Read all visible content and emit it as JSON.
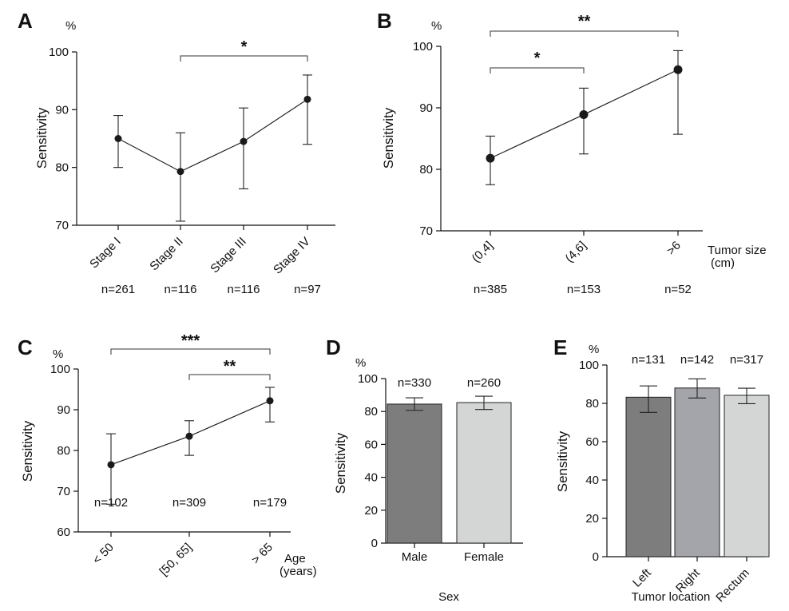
{
  "chart_data": [
    {
      "panel": "A",
      "type": "line",
      "unit": "%",
      "ylabel": "Sensitivity",
      "xlabel": "",
      "ylim": [
        70,
        100
      ],
      "yticks": [
        70,
        80,
        90,
        100
      ],
      "categories": [
        "Stage I",
        "Stage II",
        "Stage III",
        "Stage IV"
      ],
      "n_labels": [
        "n=261",
        "n=116",
        "n=116",
        "n=97"
      ],
      "values": [
        85.0,
        79.3,
        84.5,
        91.8
      ],
      "err_low": [
        80.0,
        70.7,
        76.3,
        84.0
      ],
      "err_high": [
        89.0,
        86.0,
        90.3,
        96.0
      ],
      "significance": [
        {
          "from": 1,
          "to": 3,
          "label": "*"
        }
      ]
    },
    {
      "panel": "B",
      "type": "line",
      "unit": "%",
      "ylabel": "Sensitivity",
      "xlabel": "Tumor size (cm)",
      "ylim": [
        70,
        100
      ],
      "yticks": [
        70,
        80,
        90,
        100
      ],
      "categories": [
        "(0,4]",
        "(4,6]",
        ">6"
      ],
      "n_labels": [
        "n=385",
        "n=153",
        "n=52"
      ],
      "values": [
        81.8,
        88.9,
        96.2
      ],
      "err_low": [
        77.5,
        82.5,
        85.7
      ],
      "err_high": [
        85.4,
        93.2,
        99.3
      ],
      "significance": [
        {
          "from": 0,
          "to": 1,
          "label": "*"
        },
        {
          "from": 0,
          "to": 2,
          "label": "**"
        }
      ]
    },
    {
      "panel": "C",
      "type": "line",
      "unit": "%",
      "ylabel": "Sensitivity",
      "xlabel": "Age (years)",
      "ylim": [
        60,
        100
      ],
      "yticks": [
        60,
        70,
        80,
        90,
        100
      ],
      "categories": [
        "< 50",
        "[50, 65]",
        "> 65"
      ],
      "n_labels": [
        "n=102",
        "n=309",
        "n=179"
      ],
      "values": [
        76.5,
        83.5,
        92.2
      ],
      "err_low": [
        66.8,
        78.8,
        87.0
      ],
      "err_high": [
        84.1,
        87.3,
        95.5
      ],
      "significance": [
        {
          "from": 0,
          "to": 2,
          "label": "***"
        },
        {
          "from": 1,
          "to": 2,
          "label": "**"
        }
      ]
    },
    {
      "panel": "D",
      "type": "bar",
      "unit": "%",
      "ylabel": "Sensitivity",
      "xlabel": "Sex",
      "ylim": [
        0,
        100
      ],
      "yticks": [
        0,
        20,
        40,
        60,
        80,
        100
      ],
      "categories": [
        "Male",
        "Female"
      ],
      "n_labels": [
        "n=330",
        "n=260"
      ],
      "values": [
        84.5,
        85.4
      ],
      "err_low": [
        80.7,
        81.2
      ],
      "err_high": [
        88.3,
        89.3
      ],
      "bar_colors": [
        "#7d7d7d",
        "#d4d6d5"
      ]
    },
    {
      "panel": "E",
      "type": "bar",
      "unit": "%",
      "ylabel": "Sensitivity",
      "xlabel": "Tumor location",
      "ylim": [
        0,
        100
      ],
      "yticks": [
        0,
        20,
        40,
        60,
        80,
        100
      ],
      "categories": [
        "Left",
        "Right",
        "Rectum"
      ],
      "n_labels": [
        "n=131",
        "n=142",
        "n=317"
      ],
      "values": [
        83.2,
        88.0,
        84.2
      ],
      "err_low": [
        75.3,
        82.8,
        79.8
      ],
      "err_high": [
        89.1,
        92.8,
        87.9
      ],
      "bar_colors": [
        "#7d7d7d",
        "#a4a4ab",
        "#d4d6d5"
      ]
    }
  ]
}
